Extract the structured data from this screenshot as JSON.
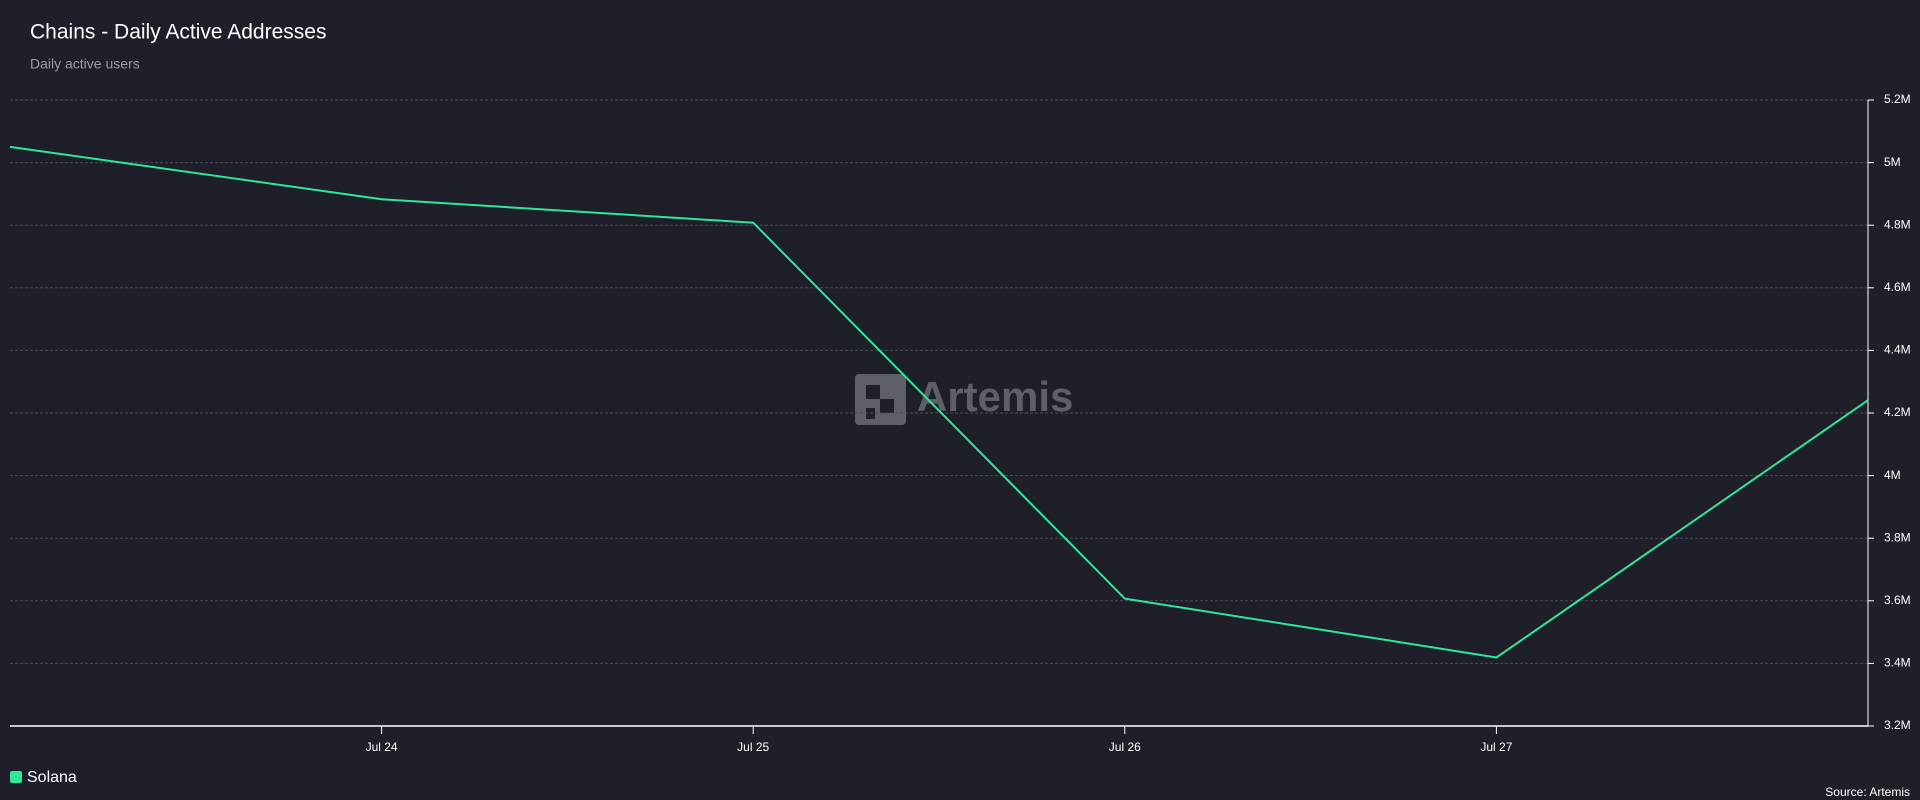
{
  "chart_data": {
    "type": "line",
    "title": "Chains - Daily Active Addresses",
    "subtitle": "Daily active users",
    "watermark": "Artemis",
    "source": "Source: Artemis",
    "categories": [
      null,
      "Jul 24",
      "Jul 25",
      "Jul 26",
      "Jul 27",
      null
    ],
    "series": [
      {
        "name": "Solana",
        "color": "#2ee89a",
        "values": [
          5050000,
          4883000,
          4808000,
          3607000,
          3419000,
          4241000
        ]
      }
    ],
    "ylim": [
      3200000,
      5200000
    ],
    "yticks": [
      {
        "value": 3200000,
        "label": "3.2M"
      },
      {
        "value": 3400000,
        "label": "3.4M"
      },
      {
        "value": 3600000,
        "label": "3.6M"
      },
      {
        "value": 3800000,
        "label": "3.8M"
      },
      {
        "value": 4000000,
        "label": "4M"
      },
      {
        "value": 4200000,
        "label": "4.2M"
      },
      {
        "value": 4400000,
        "label": "4.4M"
      },
      {
        "value": 4600000,
        "label": "4.6M"
      },
      {
        "value": 4800000,
        "label": "4.8M"
      },
      {
        "value": 5000000,
        "label": "5M"
      },
      {
        "value": 5200000,
        "label": "5.2M"
      }
    ],
    "grid": true,
    "legend": "bottom-left"
  }
}
